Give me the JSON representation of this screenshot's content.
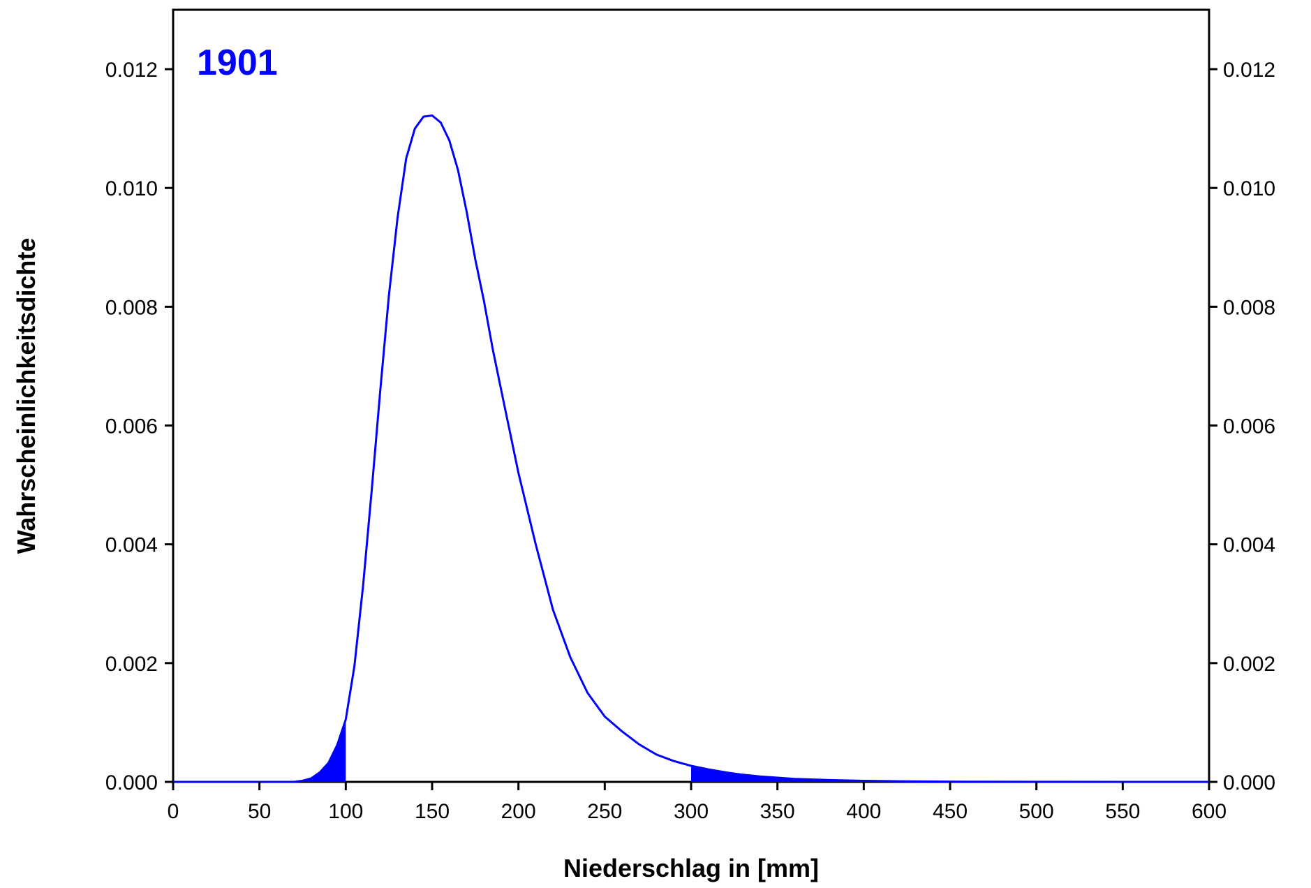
{
  "chart_data": {
    "type": "area",
    "title": "1901",
    "xlabel": "Niederschlag in [mm]",
    "ylabel": "Wahrscheinlichkeitsdichte",
    "xlim": [
      0,
      600
    ],
    "ylim": [
      0,
      0.013
    ],
    "x_ticks": [
      0,
      50,
      100,
      150,
      200,
      250,
      300,
      350,
      400,
      450,
      500,
      550,
      600
    ],
    "x_tick_labels": [
      "0",
      "50",
      "100",
      "150",
      "200",
      "250",
      "300",
      "350",
      "400",
      "450",
      "500",
      "550",
      "600"
    ],
    "y_ticks": [
      0,
      0.002,
      0.004,
      0.006,
      0.008,
      0.01,
      0.012
    ],
    "y_tick_labels": [
      "0.000",
      "0.002",
      "0.004",
      "0.006",
      "0.008",
      "0.010",
      "0.012"
    ],
    "right_y_tick_labels": [
      "0.000",
      "0.002",
      "0.004",
      "0.006",
      "0.008",
      "0.010",
      "0.012"
    ],
    "grid": false,
    "color": "#0000ff",
    "shaded_ranges": [
      [
        0,
        100
      ],
      [
        300,
        600
      ]
    ],
    "x": [
      0,
      50,
      70,
      75,
      80,
      85,
      90,
      95,
      100,
      105,
      110,
      115,
      120,
      125,
      130,
      135,
      140,
      145,
      150,
      155,
      160,
      165,
      170,
      175,
      180,
      185,
      190,
      195,
      200,
      210,
      220,
      230,
      240,
      250,
      260,
      270,
      280,
      290,
      300,
      310,
      320,
      330,
      340,
      350,
      360,
      380,
      400,
      420,
      440,
      460,
      500,
      550,
      600
    ],
    "y": [
      0,
      0,
      0.0,
      2e-05,
      6e-05,
      0.00016,
      0.00032,
      0.00062,
      0.00105,
      0.00195,
      0.0033,
      0.0049,
      0.0066,
      0.0082,
      0.0095,
      0.0105,
      0.011,
      0.0112,
      0.01122,
      0.0111,
      0.0108,
      0.0103,
      0.0096,
      0.0088,
      0.0081,
      0.0073,
      0.0066,
      0.0059,
      0.0052,
      0.004,
      0.0029,
      0.0021,
      0.0015,
      0.0011,
      0.00085,
      0.00063,
      0.00046,
      0.00035,
      0.00027,
      0.00021,
      0.00016,
      0.00012,
      9e-05,
      7e-05,
      5e-05,
      3e-05,
      1.8e-05,
      1.1e-05,
      6e-06,
      3e-06,
      1e-06,
      0.0,
      0.0
    ]
  }
}
